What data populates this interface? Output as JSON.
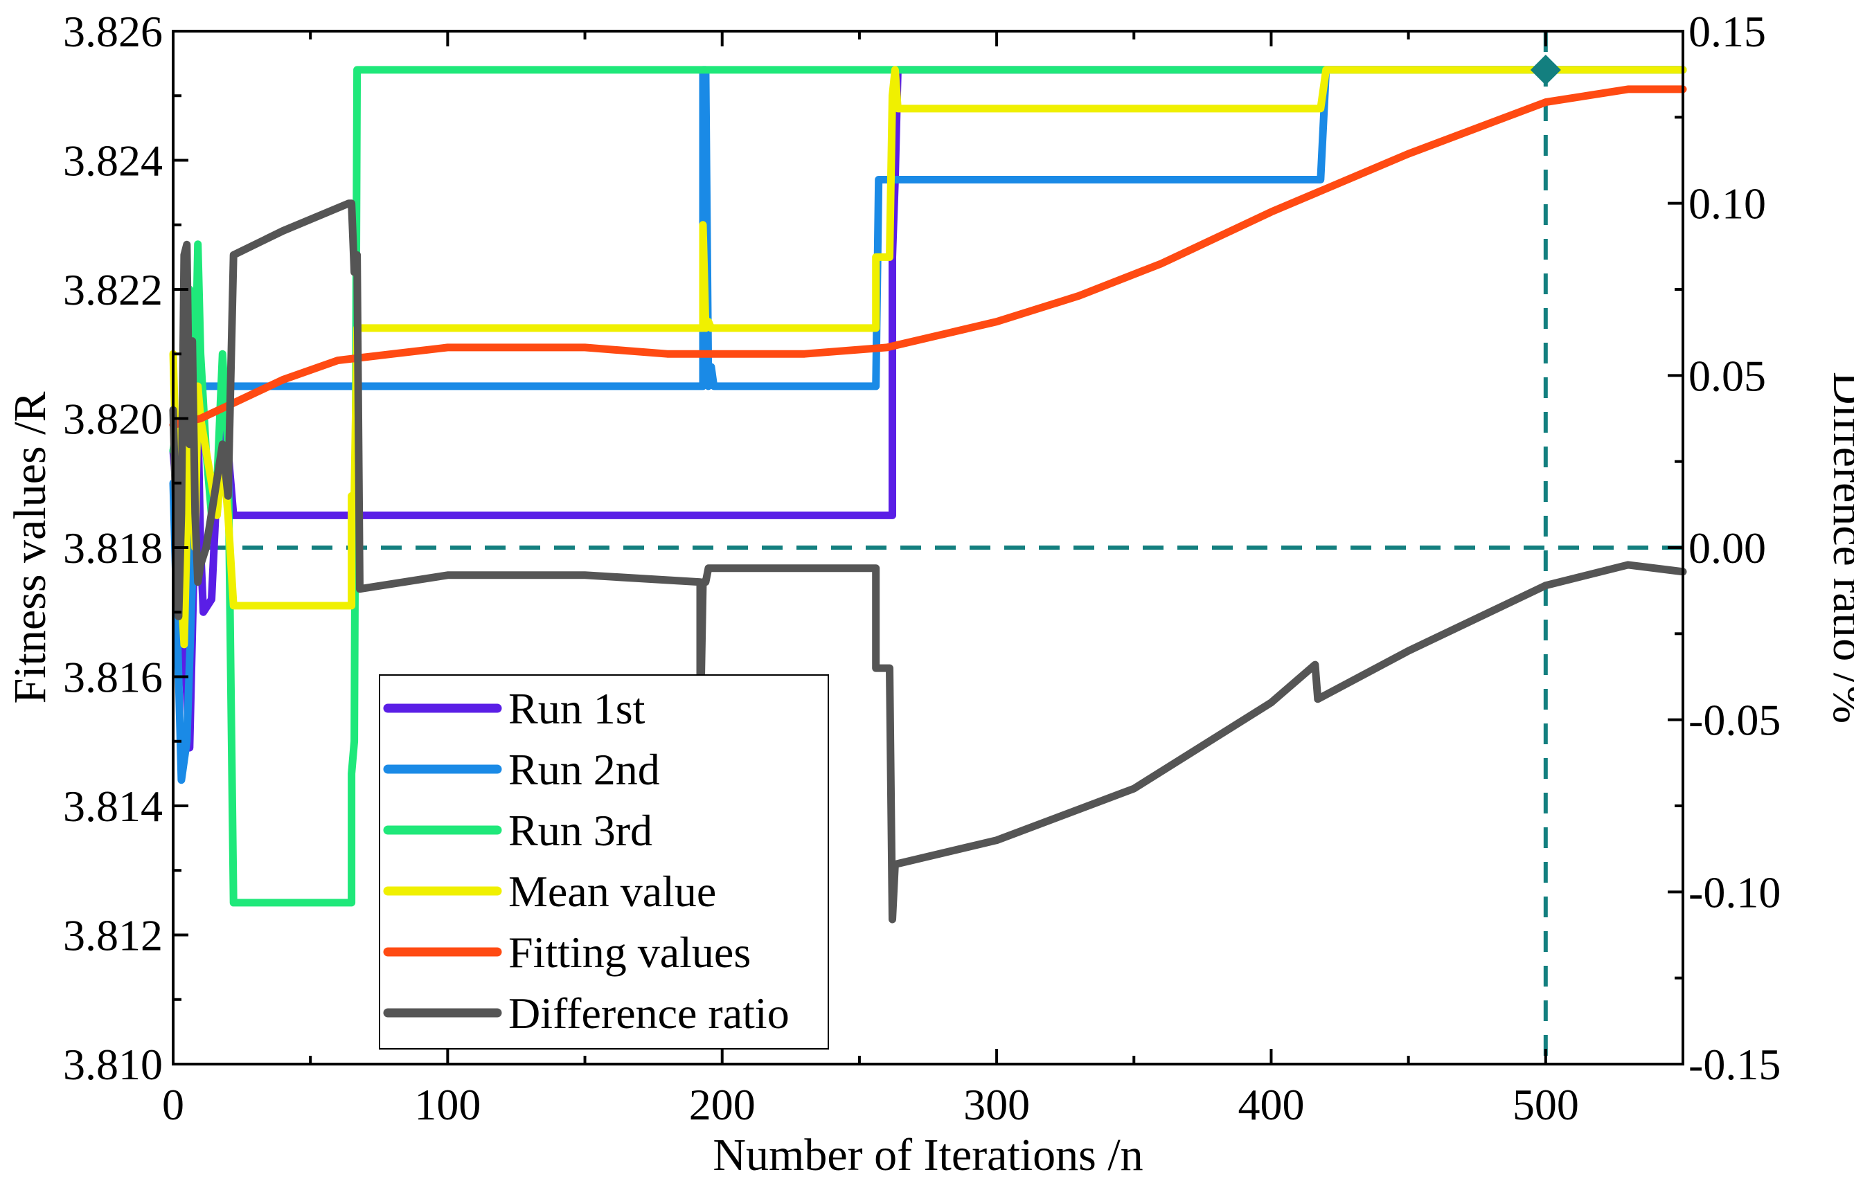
{
  "chart_data": {
    "type": "line",
    "title": "",
    "xlabel": "Number of Iterations /n",
    "ylabel": "Fitness values /R",
    "y2label": "Difference ratio /%",
    "xlim": [
      0,
      550
    ],
    "ylim": [
      3.81,
      3.826
    ],
    "y2lim": [
      -0.15,
      0.15
    ],
    "x_ticks": [
      "0",
      "100",
      "200",
      "300",
      "400",
      "500"
    ],
    "y_ticks": [
      "3.810",
      "3.812",
      "3.814",
      "3.816",
      "3.818",
      "3.820",
      "3.822",
      "3.824",
      "3.826"
    ],
    "y2_ticks": [
      "-0.15",
      "-0.10",
      "-0.05",
      "0.00",
      "0.05",
      "0.10",
      "0.15"
    ],
    "grid": false,
    "legend_position": "bottom-left",
    "series": [
      {
        "name": "Run 1st",
        "color": "#5a1ee6",
        "axis": "left",
        "points": [
          [
            0,
            3.8195
          ],
          [
            2,
            3.8185
          ],
          [
            4,
            3.8165
          ],
          [
            6,
            3.8149
          ],
          [
            8,
            3.8185
          ],
          [
            9,
            3.82
          ],
          [
            10,
            3.818
          ],
          [
            11,
            3.817
          ],
          [
            14,
            3.8172
          ],
          [
            16,
            3.819
          ],
          [
            18,
            3.8198
          ],
          [
            20,
            3.8195
          ],
          [
            22,
            3.8185
          ],
          [
            67,
            3.8185
          ],
          [
            67,
            3.8185
          ],
          [
            262,
            3.8185
          ],
          [
            262,
            3.8225
          ],
          [
            263,
            3.8237
          ],
          [
            264,
            3.8254
          ],
          [
            550,
            3.8254
          ]
        ]
      },
      {
        "name": "Run 2nd",
        "color": "#1a8ae6",
        "axis": "left",
        "points": [
          [
            0,
            3.819
          ],
          [
            2,
            3.816
          ],
          [
            3,
            3.8144
          ],
          [
            5,
            3.815
          ],
          [
            7,
            3.8175
          ],
          [
            9,
            3.82
          ],
          [
            10,
            3.8205
          ],
          [
            193,
            3.8205
          ],
          [
            193,
            3.8254
          ],
          [
            194,
            3.8254
          ],
          [
            195,
            3.8205
          ],
          [
            196,
            3.8208
          ],
          [
            197,
            3.8205
          ],
          [
            256,
            3.8205
          ],
          [
            257,
            3.8237
          ],
          [
            418,
            3.8237
          ],
          [
            420,
            3.8254
          ],
          [
            550,
            3.8254
          ]
        ]
      },
      {
        "name": "Run 3rd",
        "color": "#1fe87a",
        "axis": "left",
        "points": [
          [
            0,
            3.8195
          ],
          [
            2,
            3.82
          ],
          [
            4,
            3.8185
          ],
          [
            6,
            3.822
          ],
          [
            8,
            3.8205
          ],
          [
            9,
            3.8227
          ],
          [
            10,
            3.821
          ],
          [
            12,
            3.8195
          ],
          [
            14,
            3.8185
          ],
          [
            16,
            3.819
          ],
          [
            18,
            3.821
          ],
          [
            20,
            3.8195
          ],
          [
            22,
            3.8125
          ],
          [
            65,
            3.8125
          ],
          [
            65,
            3.8145
          ],
          [
            66,
            3.815
          ],
          [
            67,
            3.8254
          ],
          [
            550,
            3.8254
          ]
        ]
      },
      {
        "name": "Mean value",
        "color": "#f0f000",
        "axis": "left",
        "points": [
          [
            0,
            3.821
          ],
          [
            2,
            3.818
          ],
          [
            4,
            3.8165
          ],
          [
            6,
            3.82
          ],
          [
            8,
            3.818
          ],
          [
            9,
            3.8205
          ],
          [
            10,
            3.82
          ],
          [
            12,
            3.8195
          ],
          [
            14,
            3.819
          ],
          [
            16,
            3.8185
          ],
          [
            18,
            3.8195
          ],
          [
            20,
            3.8185
          ],
          [
            22,
            3.8171
          ],
          [
            65,
            3.8171
          ],
          [
            65,
            3.8188
          ],
          [
            66,
            3.8188
          ],
          [
            67,
            3.8214
          ],
          [
            193,
            3.8214
          ],
          [
            193,
            3.823
          ],
          [
            194,
            3.8214
          ],
          [
            195,
            3.8215
          ],
          [
            196,
            3.8214
          ],
          [
            256,
            3.8214
          ],
          [
            256,
            3.8225
          ],
          [
            261,
            3.8225
          ],
          [
            262,
            3.825
          ],
          [
            263,
            3.8254
          ],
          [
            264,
            3.8248
          ],
          [
            418,
            3.8248
          ],
          [
            420,
            3.8254
          ],
          [
            550,
            3.8254
          ]
        ]
      },
      {
        "name": "Fitting values",
        "color": "#ff4a12",
        "axis": "left",
        "points": [
          [
            0,
            3.8199
          ],
          [
            10,
            3.82
          ],
          [
            20,
            3.8202
          ],
          [
            40,
            3.8206
          ],
          [
            60,
            3.8209
          ],
          [
            80,
            3.821
          ],
          [
            100,
            3.8211
          ],
          [
            120,
            3.8211
          ],
          [
            150,
            3.8211
          ],
          [
            180,
            3.821
          ],
          [
            200,
            3.821
          ],
          [
            230,
            3.821
          ],
          [
            260,
            3.8211
          ],
          [
            280,
            3.8213
          ],
          [
            300,
            3.8215
          ],
          [
            330,
            3.8219
          ],
          [
            360,
            3.8224
          ],
          [
            400,
            3.8232
          ],
          [
            450,
            3.8241
          ],
          [
            500,
            3.8249
          ],
          [
            530,
            3.8251
          ],
          [
            550,
            3.8251
          ]
        ]
      },
      {
        "name": "Difference ratio",
        "color": "#555555",
        "axis": "right",
        "points": [
          [
            0,
            0.04
          ],
          [
            2,
            -0.02
          ],
          [
            3,
            0.01
          ],
          [
            4,
            0.085
          ],
          [
            5,
            0.088
          ],
          [
            6,
            0.03
          ],
          [
            7,
            0.06
          ],
          [
            8,
            0.01
          ],
          [
            9,
            -0.01
          ],
          [
            10,
            -0.005
          ],
          [
            12,
            0.0
          ],
          [
            14,
            0.01
          ],
          [
            16,
            0.02
          ],
          [
            18,
            0.03
          ],
          [
            20,
            0.015
          ],
          [
            22,
            0.085
          ],
          [
            40,
            0.092
          ],
          [
            64,
            0.1
          ],
          [
            65,
            0.1
          ],
          [
            66,
            0.08
          ],
          [
            67,
            0.085
          ],
          [
            68,
            -0.012
          ],
          [
            100,
            -0.008
          ],
          [
            150,
            -0.008
          ],
          [
            192,
            -0.01
          ],
          [
            192,
            -0.054
          ],
          [
            193,
            -0.01
          ],
          [
            194,
            -0.01
          ],
          [
            195,
            -0.006
          ],
          [
            256,
            -0.006
          ],
          [
            256,
            -0.035
          ],
          [
            261,
            -0.035
          ],
          [
            262,
            -0.108
          ],
          [
            263,
            -0.092
          ],
          [
            300,
            -0.085
          ],
          [
            350,
            -0.07
          ],
          [
            400,
            -0.045
          ],
          [
            416,
            -0.034
          ],
          [
            417,
            -0.044
          ],
          [
            450,
            -0.03
          ],
          [
            500,
            -0.011
          ],
          [
            530,
            -0.005
          ],
          [
            550,
            -0.007
          ]
        ]
      }
    ],
    "reference_lines": [
      {
        "type": "horizontal",
        "axis": "right",
        "value": 0.0,
        "color": "#137f7f",
        "style": "dashed"
      },
      {
        "type": "vertical",
        "value": 500,
        "color": "#137f7f",
        "style": "dashed"
      }
    ],
    "markers": [
      {
        "shape": "diamond",
        "x": 500,
        "y": 3.8254,
        "color": "#137f7f"
      }
    ]
  }
}
